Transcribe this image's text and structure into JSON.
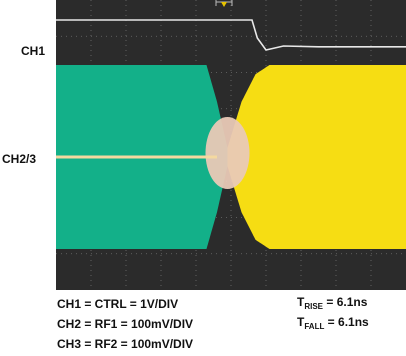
{
  "chart_data": {
    "type": "line",
    "title": "",
    "xlabel": "",
    "ylabel": "",
    "grid": true,
    "channel_labels": {
      "ch1": "CH1",
      "ch23": "CH2/3"
    },
    "series": [
      {
        "name": "CH1 = CTRL = 1V/DIV",
        "color": "#e8e8e8",
        "x": [
          0,
          5.6,
          5.75,
          6.0,
          6.5,
          7.5,
          10
        ],
        "values": [
          1.0,
          1.0,
          0.55,
          0.25,
          0.35,
          0.33,
          0.33
        ]
      },
      {
        "name": "CH2 = RF1 = 100mV/DIV",
        "color": "#13b089",
        "x": [
          0,
          4.3,
          4.6,
          4.9
        ],
        "amplitude": [
          1.0,
          1.0,
          0.6,
          0.1
        ]
      },
      {
        "name": "CH3 = RF2 = 100mV/DIV",
        "color": "#f6dd13",
        "x": [
          4.9,
          5.3,
          5.7,
          6.1,
          10
        ],
        "amplitude": [
          0.1,
          0.6,
          0.9,
          1.0,
          1.0
        ]
      }
    ],
    "overlap_color": "#e9c9b6",
    "captions": {
      "left": [
        "CH1 = CTRL = 1V/DIV",
        "CH2 = RF1 = 100mV/DIV",
        "CH3 = RF2 = 100mV/DIV"
      ],
      "rise_main": "T",
      "rise_sub": "RISE",
      "rise_val": " = 6.1ns",
      "fall_main": "T",
      "fall_sub": "FALL",
      "fall_val": " = 6.1ns"
    }
  }
}
